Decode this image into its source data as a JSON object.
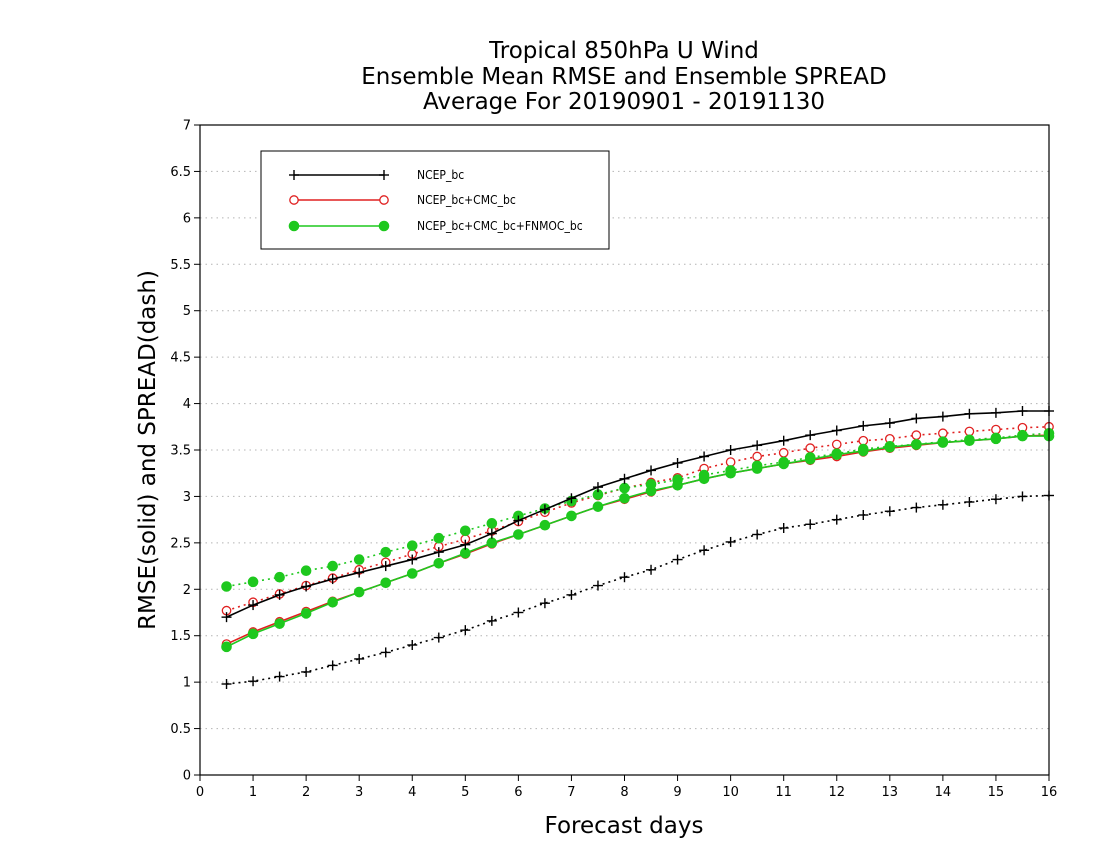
{
  "chart_data": {
    "type": "line",
    "title_lines": [
      "Tropical 850hPa U Wind",
      "Ensemble Mean RMSE and Ensemble SPREAD",
      "Average For 20190901 - 20191130"
    ],
    "xlabel": "Forecast days",
    "ylabel": "RMSE(solid) and SPREAD(dash)",
    "xlim": [
      0,
      16
    ],
    "ylim": [
      0,
      7
    ],
    "xticks": [
      0,
      1,
      2,
      3,
      4,
      5,
      6,
      7,
      8,
      9,
      10,
      11,
      12,
      13,
      14,
      15,
      16
    ],
    "xtick_labels": [
      "0",
      "1",
      "2",
      "3",
      "4",
      "5",
      "6",
      "7",
      "8",
      "9",
      "10",
      "11",
      "12",
      "13",
      "14",
      "15",
      "16"
    ],
    "yticks": [
      0,
      0.5,
      1,
      1.5,
      2,
      2.5,
      3,
      3.5,
      4,
      4.5,
      5,
      5.5,
      6,
      6.5,
      7
    ],
    "ytick_labels": [
      "0",
      "0.5",
      "1",
      "1.5",
      "2",
      "2.5",
      "3",
      "3.5",
      "4",
      "4.5",
      "5",
      "5.5",
      "6",
      "6.5",
      "7"
    ],
    "grid": "horizontal dotted",
    "legend_position": "top-left",
    "x": [
      0.5,
      1,
      1.5,
      2,
      2.5,
      3,
      3.5,
      4,
      4.5,
      5,
      5.5,
      6,
      6.5,
      7,
      7.5,
      8,
      8.5,
      9,
      9.5,
      10,
      10.5,
      11,
      11.5,
      12,
      12.5,
      13,
      13.5,
      14,
      14.5,
      15,
      15.5,
      16
    ],
    "series": [
      {
        "name": "NCEP_bc",
        "color": "#000000",
        "marker": "plus",
        "rmse": [
          1.7,
          1.83,
          1.94,
          2.03,
          2.11,
          2.18,
          2.25,
          2.32,
          2.4,
          2.48,
          2.6,
          2.74,
          2.86,
          2.98,
          3.1,
          3.19,
          3.28,
          3.36,
          3.43,
          3.5,
          3.55,
          3.6,
          3.66,
          3.71,
          3.76,
          3.79,
          3.84,
          3.86,
          3.89,
          3.9,
          3.92,
          3.92
        ],
        "spread": [
          0.98,
          1.01,
          1.06,
          1.11,
          1.18,
          1.25,
          1.32,
          1.4,
          1.48,
          1.56,
          1.66,
          1.75,
          1.85,
          1.94,
          2.04,
          2.13,
          2.21,
          2.32,
          2.42,
          2.51,
          2.59,
          2.66,
          2.7,
          2.75,
          2.8,
          2.84,
          2.88,
          2.91,
          2.94,
          2.97,
          3.0,
          3.01
        ]
      },
      {
        "name": "NCEP_bc+CMC_bc",
        "color": "#e02020",
        "marker": "open-circle",
        "rmse": [
          1.41,
          1.54,
          1.65,
          1.76,
          1.87,
          1.97,
          2.07,
          2.17,
          2.28,
          2.38,
          2.49,
          2.59,
          2.69,
          2.79,
          2.89,
          2.97,
          3.05,
          3.12,
          3.19,
          3.25,
          3.3,
          3.35,
          3.39,
          3.43,
          3.48,
          3.52,
          3.55,
          3.58,
          3.6,
          3.62,
          3.65,
          3.66
        ],
        "spread": [
          1.77,
          1.86,
          1.95,
          2.04,
          2.12,
          2.21,
          2.29,
          2.38,
          2.46,
          2.54,
          2.63,
          2.73,
          2.83,
          2.93,
          3.01,
          3.09,
          3.15,
          3.2,
          3.3,
          3.37,
          3.43,
          3.47,
          3.52,
          3.56,
          3.6,
          3.62,
          3.66,
          3.68,
          3.7,
          3.72,
          3.74,
          3.75
        ]
      },
      {
        "name": "NCEP_bc+CMC_bc+FNMOC_bc",
        "color": "#1ec81e",
        "marker": "filled-circle",
        "rmse": [
          1.38,
          1.52,
          1.63,
          1.74,
          1.86,
          1.97,
          2.07,
          2.17,
          2.28,
          2.39,
          2.5,
          2.59,
          2.69,
          2.79,
          2.89,
          2.98,
          3.06,
          3.12,
          3.19,
          3.25,
          3.3,
          3.35,
          3.4,
          3.45,
          3.49,
          3.53,
          3.56,
          3.58,
          3.6,
          3.62,
          3.65,
          3.65
        ],
        "spread": [
          2.03,
          2.08,
          2.13,
          2.2,
          2.25,
          2.32,
          2.4,
          2.47,
          2.55,
          2.63,
          2.71,
          2.79,
          2.87,
          2.95,
          3.02,
          3.09,
          3.13,
          3.18,
          3.23,
          3.28,
          3.33,
          3.37,
          3.42,
          3.46,
          3.51,
          3.54,
          3.56,
          3.59,
          3.61,
          3.63,
          3.66,
          3.68
        ]
      }
    ]
  }
}
